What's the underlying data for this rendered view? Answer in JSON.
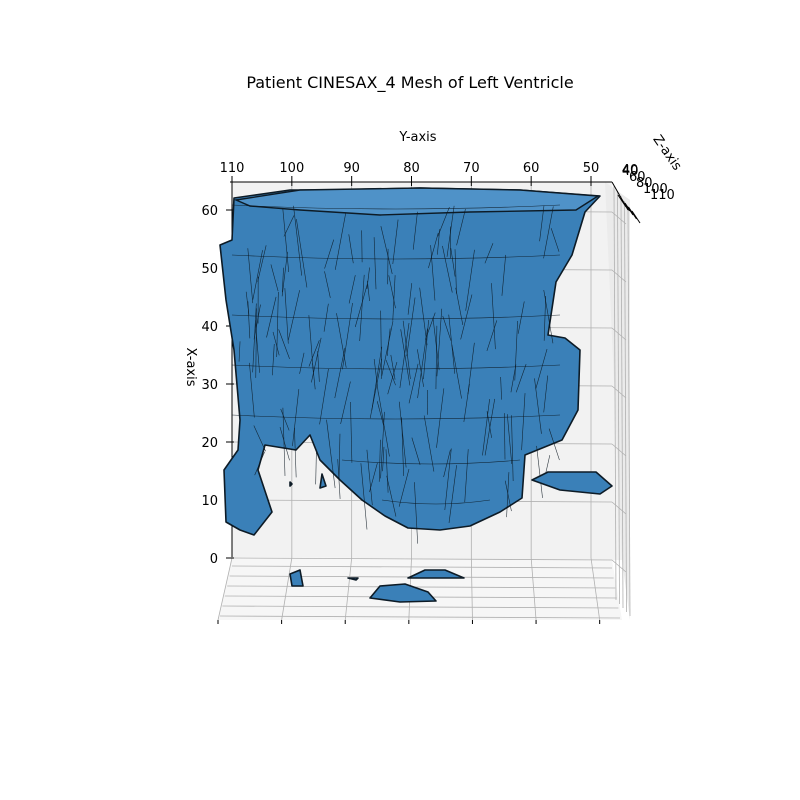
{
  "chart_data": {
    "type": "3d-mesh",
    "title": "Patient CINESAX_4 Mesh of Left Ventricle",
    "ylabel": "Y-axis",
    "xlabel": "X-axis",
    "zlabel": "Z-axis",
    "y_ticks": [
      "110",
      "100",
      "90",
      "80",
      "70",
      "60",
      "50",
      "40"
    ],
    "x_ticks": [
      "0",
      "10",
      "20",
      "30",
      "40",
      "50",
      "60"
    ],
    "z_ticks": [
      "40",
      "60",
      "80",
      "100",
      "110"
    ],
    "ylim": [
      110,
      40
    ],
    "xlim": [
      0,
      62
    ],
    "grid": true,
    "mesh_color": "#3a80b8",
    "edge_color": "#0d1b26",
    "pane_color": "#f2f2f2"
  }
}
